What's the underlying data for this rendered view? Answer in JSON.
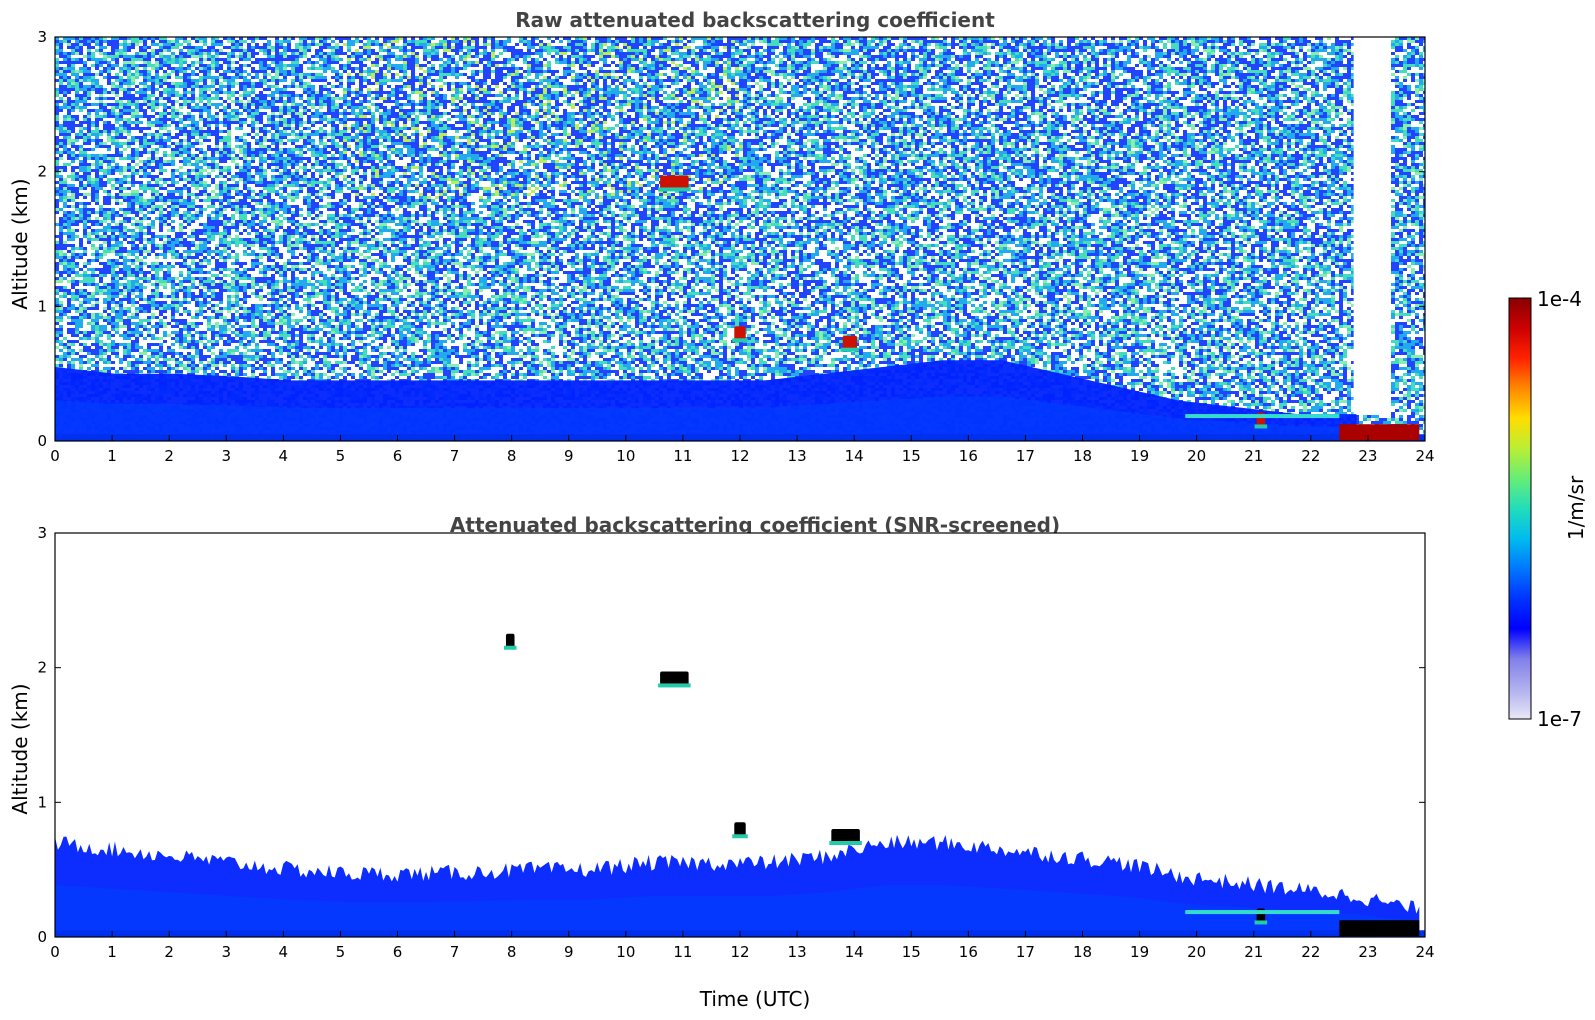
{
  "chart_data": [
    {
      "type": "heatmap",
      "title": "Raw attenuated backscattering coefficient",
      "xlabel": "",
      "ylabel": "Altitude (km)",
      "xlim": [
        0,
        24
      ],
      "ylim": [
        0,
        3
      ],
      "x_ticks": [
        "0",
        "1",
        "2",
        "3",
        "4",
        "5",
        "6",
        "7",
        "8",
        "9",
        "10",
        "11",
        "12",
        "13",
        "14",
        "15",
        "16",
        "17",
        "18",
        "19",
        "20",
        "21",
        "22",
        "23",
        "24"
      ],
      "y_ticks": [
        "0",
        "1",
        "2",
        "3"
      ],
      "color_scale": "log",
      "value_range": [
        1e-07,
        0.0001
      ],
      "features": [
        {
          "kind": "boundary_layer",
          "x_start": 0,
          "x_end": 22.8,
          "top_km": [
            0.55,
            0.5,
            0.5,
            0.48,
            0.45,
            0.45,
            0.45,
            0.45,
            0.45,
            0.45,
            0.45,
            0.45,
            0.45,
            0.5,
            0.55,
            0.6,
            0.6,
            0.5,
            0.4,
            0.3,
            0.25,
            0.2,
            0.2
          ]
        },
        {
          "kind": "cloud",
          "x_start": 10.6,
          "x_end": 11.1,
          "y_km": 1.92
        },
        {
          "kind": "cloud",
          "x_start": 11.9,
          "x_end": 12.1,
          "y_km": 0.8
        },
        {
          "kind": "cloud",
          "x_start": 13.8,
          "x_end": 14.05,
          "y_km": 0.73
        },
        {
          "kind": "cloud",
          "x_start": 21.05,
          "x_end": 21.2,
          "y_km": 0.16
        },
        {
          "kind": "low_cloud",
          "x_start": 22.5,
          "x_end": 23.9,
          "y_km": 0.08
        },
        {
          "kind": "data_gap",
          "x_start": 22.75,
          "x_end": 23.35,
          "y_min_km": 0.2,
          "y_max_km": 3.0
        }
      ]
    },
    {
      "type": "heatmap",
      "title": "Attenuated backscattering coefficient (SNR-screened)",
      "xlabel": "Time (UTC)",
      "ylabel": "Altitude (km)",
      "xlim": [
        0,
        24
      ],
      "ylim": [
        0,
        3
      ],
      "x_ticks": [
        "0",
        "1",
        "2",
        "3",
        "4",
        "5",
        "6",
        "7",
        "8",
        "9",
        "10",
        "11",
        "12",
        "13",
        "14",
        "15",
        "16",
        "17",
        "18",
        "19",
        "20",
        "21",
        "22",
        "23",
        "24"
      ],
      "y_ticks": [
        "0",
        "1",
        "2",
        "3"
      ],
      "color_scale": "log",
      "value_range": [
        1e-07,
        0.0001
      ],
      "features": [
        {
          "kind": "boundary_layer",
          "x_start": 0,
          "x_end": 23.9,
          "top_km": [
            0.7,
            0.65,
            0.6,
            0.55,
            0.5,
            0.47,
            0.47,
            0.48,
            0.5,
            0.5,
            0.55,
            0.55,
            0.55,
            0.6,
            0.7,
            0.7,
            0.65,
            0.6,
            0.55,
            0.45,
            0.4,
            0.35,
            0.3,
            0.2
          ]
        },
        {
          "kind": "cloud",
          "x_start": 10.6,
          "x_end": 11.1,
          "y_km": 1.92
        },
        {
          "kind": "cloud",
          "x_start": 7.9,
          "x_end": 8.05,
          "y_km": 2.2
        },
        {
          "kind": "cloud",
          "x_start": 11.9,
          "x_end": 12.1,
          "y_km": 0.8
        },
        {
          "kind": "cloud",
          "x_start": 13.6,
          "x_end": 14.1,
          "y_km": 0.75
        },
        {
          "kind": "cloud",
          "x_start": 21.05,
          "x_end": 21.2,
          "y_km": 0.16
        },
        {
          "kind": "low_cloud",
          "x_start": 22.5,
          "x_end": 23.9,
          "y_km": 0.08
        }
      ]
    }
  ],
  "colorbar": {
    "label": "1/m/sr",
    "max_label": "1e-4",
    "min_label": "1e-7",
    "colors": [
      "#e8e8f8",
      "#b0b0ee",
      "#8080ea",
      "#0000ff",
      "#0033ff",
      "#0077ff",
      "#00bbee",
      "#22ddbb",
      "#66ee77",
      "#bbee33",
      "#ffdd00",
      "#ff8800",
      "#ff2200",
      "#cc0000",
      "#880000"
    ]
  }
}
